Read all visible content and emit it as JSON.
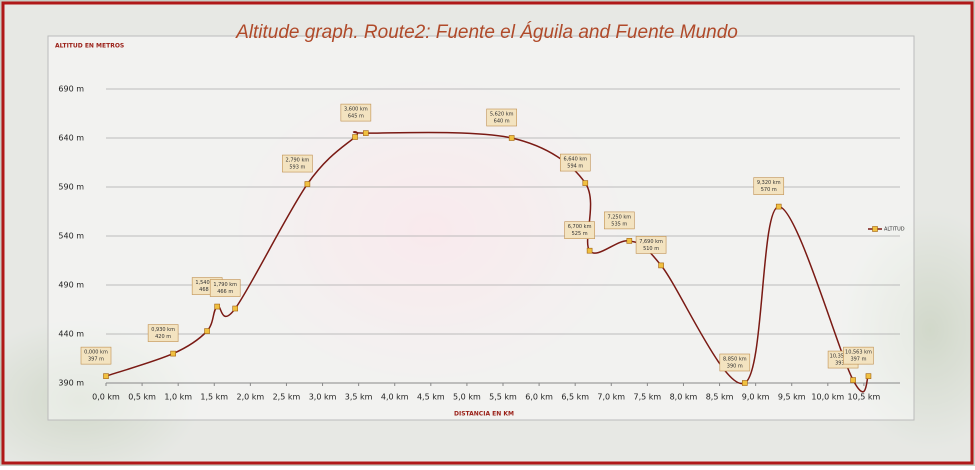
{
  "chart_data": {
    "type": "line",
    "title": "Altitude graph. Route2: Fuente el Águila and Fuente Mundo",
    "y_label": "ALTITUD EN METROS",
    "x_label": "DISTANCIA EN KM",
    "x": [
      0.0,
      0.93,
      1.4,
      1.54,
      1.79,
      2.79,
      3.45,
      3.6,
      5.62,
      6.64,
      6.7,
      7.25,
      7.69,
      8.85,
      9.32,
      10.35,
      10.563
    ],
    "x_labels": [
      "0,000 km",
      "0,930 km",
      null,
      "1,540 km",
      "1,790 km",
      "2,790 km",
      null,
      "3,600 km",
      "5,620 km",
      "6,640 km",
      "6,700 km",
      "7,250 km",
      "7,690 km",
      "8,850 km",
      "9,320 km",
      "10,350 km",
      "10,563 km"
    ],
    "series": [
      {
        "name": "ALTITUD",
        "color": "#7a1a14",
        "marker_color": "#f0c040",
        "values": [
          397,
          420,
          443,
          468,
          466,
          593,
          641,
          645,
          640,
          594,
          525,
          535,
          510,
          390,
          570,
          393,
          397
        ],
        "value_labels": [
          "397 m",
          "420 m",
          null,
          "468 m",
          "466 m",
          "593 m",
          null,
          "645 m",
          "640 m",
          "594 m",
          "525 m",
          "535 m",
          "510 m",
          "390 m",
          "570 m",
          "393 m",
          "397 m"
        ]
      }
    ],
    "xlim": [
      0,
      11
    ],
    "ylim": [
      390,
      690
    ],
    "xticks": [
      {
        "value": 0,
        "label": "0,0 km"
      },
      {
        "value": 0.5,
        "label": "0,5 km"
      },
      {
        "value": 1,
        "label": "1,0 km"
      },
      {
        "value": 1.5,
        "label": "1,5 km"
      },
      {
        "value": 2,
        "label": "2,0 km"
      },
      {
        "value": 2.5,
        "label": "2,5 km"
      },
      {
        "value": 3,
        "label": "3,0 km"
      },
      {
        "value": 3.5,
        "label": "3,5 km"
      },
      {
        "value": 4,
        "label": "4,0 km"
      },
      {
        "value": 4.5,
        "label": "4,5 km"
      },
      {
        "value": 5,
        "label": "5,0 km"
      },
      {
        "value": 5.5,
        "label": "5,5 km"
      },
      {
        "value": 6,
        "label": "6,0 km"
      },
      {
        "value": 6.5,
        "label": "6,5 km"
      },
      {
        "value": 7,
        "label": "7,0 km"
      },
      {
        "value": 7.5,
        "label": "7,5 km"
      },
      {
        "value": 8,
        "label": "8,0 km"
      },
      {
        "value": 8.5,
        "label": "8,5 km"
      },
      {
        "value": 9,
        "label": "9,0 km"
      },
      {
        "value": 9.5,
        "label": "9,5 km"
      },
      {
        "value": 10,
        "label": "10,0 km"
      },
      {
        "value": 10.5,
        "label": "10,5 km"
      }
    ],
    "yticks": [
      {
        "value": 390,
        "label": "390 m"
      },
      {
        "value": 440,
        "label": "440 m"
      },
      {
        "value": 490,
        "label": "490 m"
      },
      {
        "value": 540,
        "label": "540 m"
      },
      {
        "value": 590,
        "label": "590 m"
      },
      {
        "value": 640,
        "label": "640 m"
      },
      {
        "value": 690,
        "label": "690 m"
      }
    ],
    "grid": true,
    "legend": "right"
  }
}
